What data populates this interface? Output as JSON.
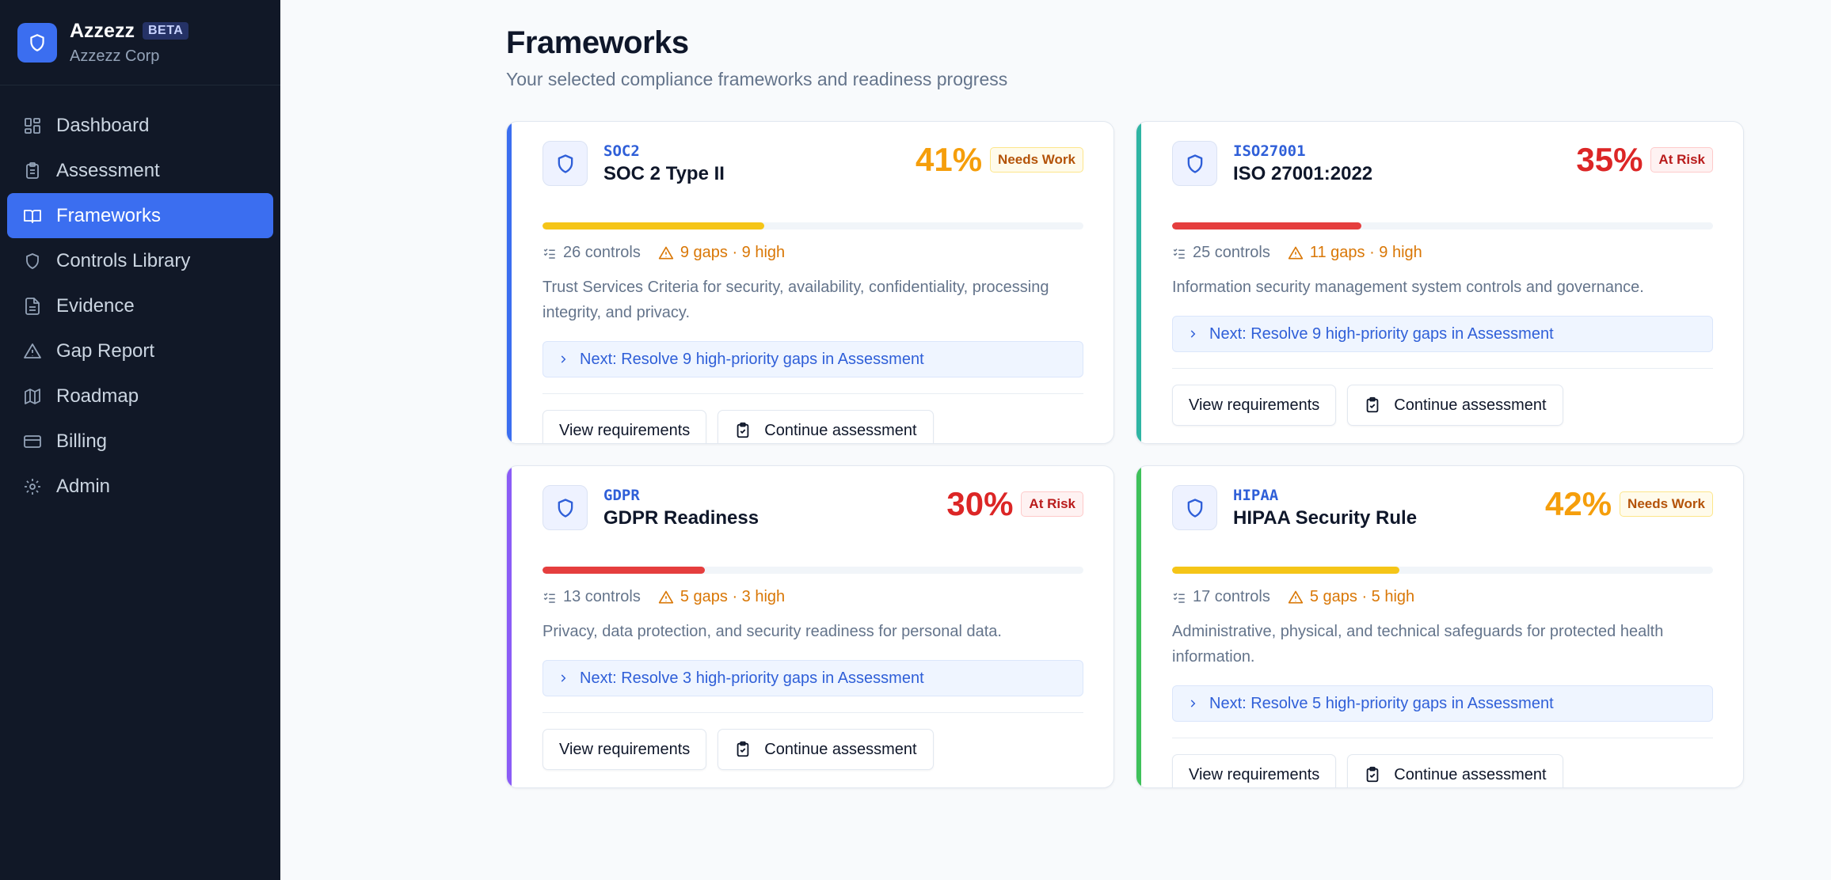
{
  "brand": {
    "name": "Azzezz",
    "beta": "BETA",
    "org": "Azzezz Corp"
  },
  "nav": [
    {
      "label": "Dashboard",
      "icon": "dashboard-icon"
    },
    {
      "label": "Assessment",
      "icon": "clipboard-icon"
    },
    {
      "label": "Frameworks",
      "icon": "book-icon",
      "active": true
    },
    {
      "label": "Controls Library",
      "icon": "shield-icon"
    },
    {
      "label": "Evidence",
      "icon": "file-icon"
    },
    {
      "label": "Gap Report",
      "icon": "warning-icon"
    },
    {
      "label": "Roadmap",
      "icon": "map-icon"
    },
    {
      "label": "Billing",
      "icon": "credit-card-icon"
    },
    {
      "label": "Admin",
      "icon": "gear-icon"
    }
  ],
  "page": {
    "title": "Frameworks",
    "subtitle": "Your selected compliance frameworks and readiness progress"
  },
  "frameworks": [
    {
      "code": "SOC2",
      "name": "SOC 2 Type II",
      "percent": "41%",
      "progress": 0.41,
      "status": "Needs Work",
      "status_kind": "warn",
      "accent": "#3b6ef0",
      "pct_color": "#f59e0b",
      "bar_color": "#f5c518",
      "controls": "26 controls",
      "gaps": "9 gaps · 9 high",
      "description": "Trust Services Criteria for security, availability, confidentiality, processing integrity, and privacy.",
      "next": "Next: Resolve 9 high-priority gaps in Assessment",
      "view_label": "View requirements",
      "continue_label": "Continue assessment"
    },
    {
      "code": "ISO27001",
      "name": "ISO 27001:2022",
      "percent": "35%",
      "progress": 0.35,
      "status": "At Risk",
      "status_kind": "risk",
      "accent": "#2fb5a3",
      "pct_color": "#dc2626",
      "bar_color": "#e53e3e",
      "controls": "25 controls",
      "gaps": "11 gaps · 9 high",
      "description": "Information security management system controls and governance.",
      "next": "Next: Resolve 9 high-priority gaps in Assessment",
      "view_label": "View requirements",
      "continue_label": "Continue assessment"
    },
    {
      "code": "GDPR",
      "name": "GDPR Readiness",
      "percent": "30%",
      "progress": 0.3,
      "status": "At Risk",
      "status_kind": "risk",
      "accent": "#8b5cf6",
      "pct_color": "#dc2626",
      "bar_color": "#e53e3e",
      "controls": "13 controls",
      "gaps": "5 gaps · 3 high",
      "description": "Privacy, data protection, and security readiness for personal data.",
      "next": "Next: Resolve 3 high-priority gaps in Assessment",
      "view_label": "View requirements",
      "continue_label": "Continue assessment"
    },
    {
      "code": "HIPAA",
      "name": "HIPAA Security Rule",
      "percent": "42%",
      "progress": 0.42,
      "status": "Needs Work",
      "status_kind": "warn",
      "accent": "#3fc15a",
      "pct_color": "#f59e0b",
      "bar_color": "#f5c518",
      "controls": "17 controls",
      "gaps": "5 gaps · 5 high",
      "description": "Administrative, physical, and technical safeguards for protected health information.",
      "next": "Next: Resolve 5 high-priority gaps in Assessment",
      "view_label": "View requirements",
      "continue_label": "Continue assessment"
    }
  ]
}
